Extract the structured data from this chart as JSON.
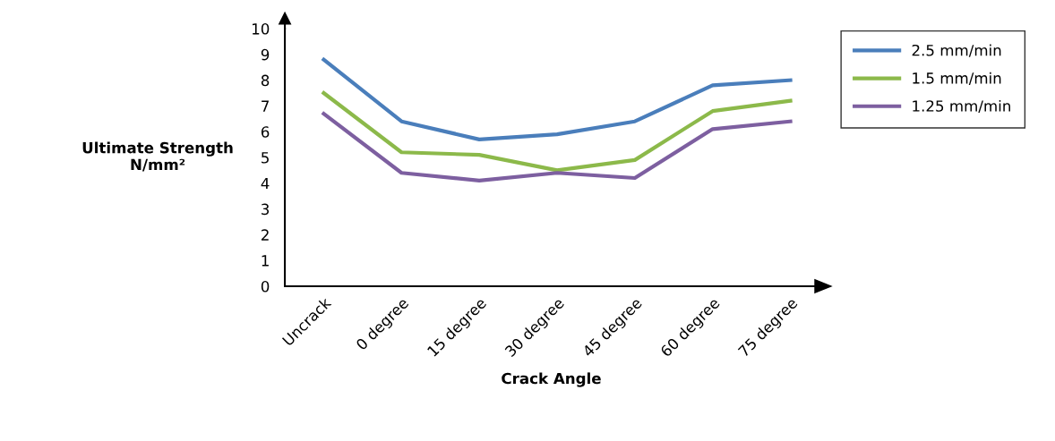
{
  "chart_data": {
    "type": "line",
    "xlabel": "Crack Angle",
    "ylabel": "Ultimate Strength\nN/mm²",
    "categories": [
      "Uncrack",
      "0 degree",
      "15 degree",
      "30 degree",
      "45 degree",
      "60 degree",
      "75 degree"
    ],
    "series": [
      {
        "name": "2.5 mm/min",
        "color": "#4a7ebb",
        "values": [
          8.8,
          6.4,
          5.7,
          5.9,
          6.4,
          7.8,
          8.0
        ]
      },
      {
        "name": "1.5 mm/min",
        "color": "#8cb94a",
        "values": [
          7.5,
          5.2,
          5.1,
          4.5,
          4.9,
          6.8,
          7.2
        ]
      },
      {
        "name": "1.25 mm/min",
        "color": "#7d5fa0",
        "values": [
          6.7,
          4.4,
          4.1,
          4.4,
          4.2,
          6.1,
          6.4
        ]
      }
    ],
    "ylim": [
      0,
      10
    ],
    "yticks": [
      0,
      1,
      2,
      3,
      4,
      5,
      6,
      7,
      8,
      9,
      10
    ],
    "grid": false,
    "legend": "right",
    "marker": "none",
    "line_style": "solid"
  }
}
